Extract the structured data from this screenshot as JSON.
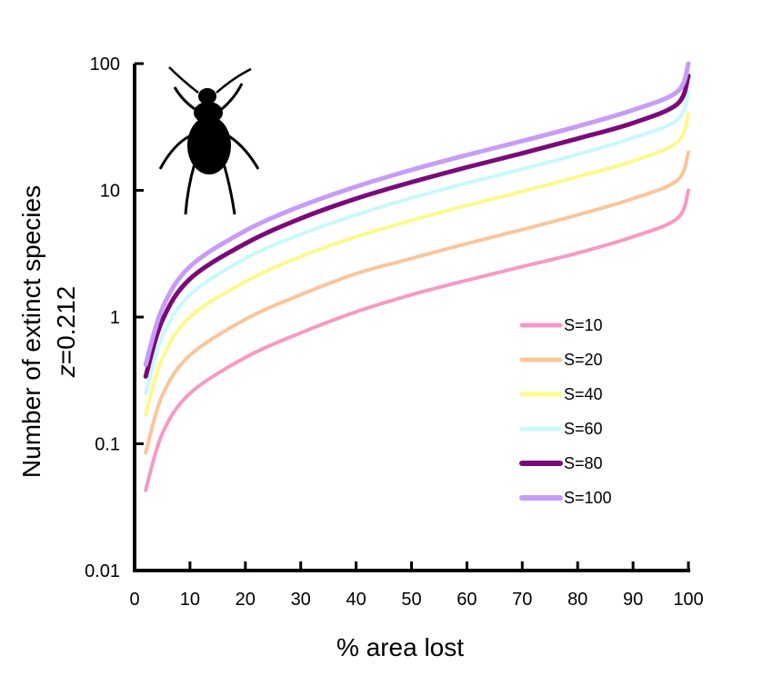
{
  "chart_data": {
    "type": "line",
    "title": "",
    "xlabel": "% area lost",
    "ylabel": "Number of extinct species",
    "ylabel2": "z=0.212",
    "ylabel2_italic": "z",
    "ylabel2_rest": "=0.212",
    "yscale": "log",
    "xlim": [
      0,
      100
    ],
    "ylim": [
      0.01,
      100
    ],
    "x_ticks": [
      "0",
      "10",
      "20",
      "30",
      "40",
      "50",
      "60",
      "70",
      "80",
      "90",
      "100"
    ],
    "y_ticks": [
      "0.01",
      "0.1",
      "1",
      "10",
      "100"
    ],
    "legend_position": "right",
    "grid": false,
    "x": [
      2,
      5,
      10,
      20,
      30,
      40,
      50,
      60,
      70,
      80,
      90,
      98,
      100
    ],
    "series": [
      {
        "name": "S=10",
        "color": "#f799c5",
        "width": 4,
        "values": [
          0.043,
          0.12,
          0.25,
          0.48,
          0.75,
          1.1,
          1.5,
          1.95,
          2.5,
          3.2,
          4.3,
          6,
          10
        ]
      },
      {
        "name": "S=20",
        "color": "#fbc59a",
        "width": 4,
        "values": [
          0.085,
          0.24,
          0.5,
          0.96,
          1.5,
          2.2,
          2.9,
          3.8,
          4.9,
          6.4,
          8.6,
          12,
          20
        ]
      },
      {
        "name": "S=40",
        "color": "#fdf98a",
        "width": 4,
        "values": [
          0.17,
          0.47,
          1.0,
          1.9,
          3.0,
          4.3,
          5.8,
          7.6,
          9.8,
          12.8,
          17,
          24,
          40
        ]
      },
      {
        "name": "S=60",
        "color": "#c8f9fb",
        "width": 4,
        "values": [
          0.25,
          0.7,
          1.5,
          2.9,
          4.5,
          6.4,
          8.7,
          11.4,
          14.7,
          19.2,
          26,
          36,
          60
        ]
      },
      {
        "name": "S=80",
        "color": "#7a0a7a",
        "width": 5,
        "values": [
          0.34,
          0.94,
          2.0,
          3.8,
          6.0,
          8.6,
          11.6,
          15.2,
          19.6,
          25.6,
          34,
          48,
          80
        ]
      },
      {
        "name": "S=100",
        "color": "#c79cf7",
        "width": 5,
        "values": [
          0.42,
          1.17,
          2.5,
          4.8,
          7.5,
          10.7,
          14.5,
          19,
          24.5,
          32,
          43,
          60,
          100
        ]
      }
    ]
  },
  "icon": "beetle-silhouette"
}
